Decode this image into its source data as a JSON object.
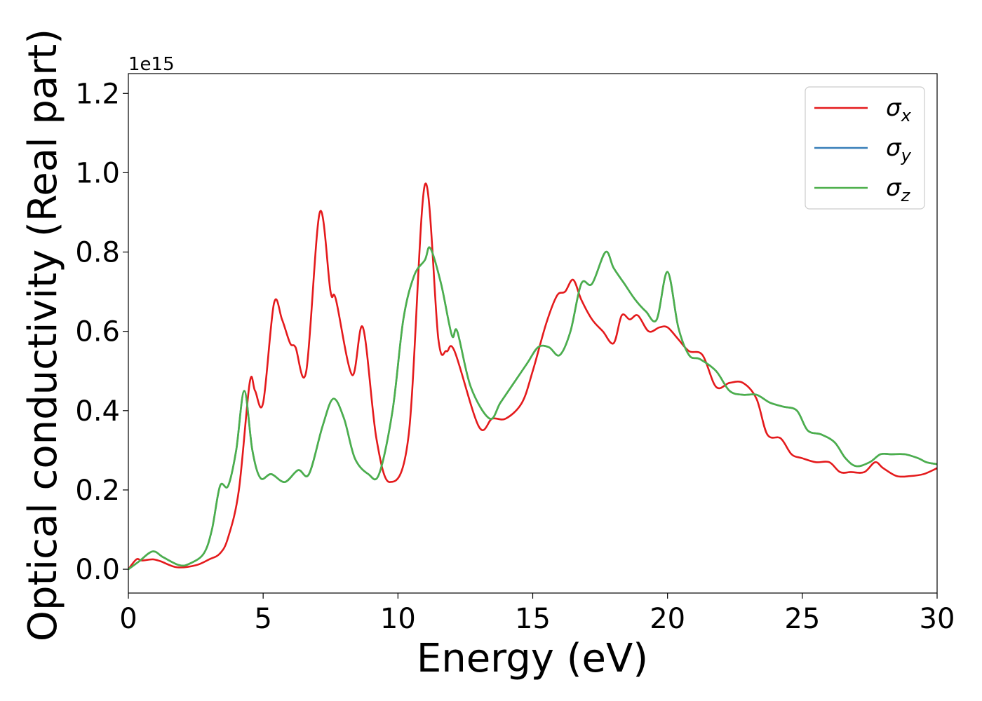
{
  "chart_data": {
    "type": "line",
    "title": "",
    "xlabel": "Energy (eV)",
    "ylabel": "Optical conductivity (Real part)",
    "y_offset_label": "1e15",
    "xlim": [
      0,
      30
    ],
    "ylim": [
      -0.06,
      1.25
    ],
    "x_ticks": [
      0,
      5,
      10,
      15,
      20,
      25,
      30
    ],
    "x_tick_labels": [
      "0",
      "5",
      "10",
      "15",
      "20",
      "25",
      "30"
    ],
    "y_ticks": [
      0.0,
      0.2,
      0.4,
      0.6,
      0.8,
      1.0,
      1.2
    ],
    "y_tick_labels": [
      "0.0",
      "0.2",
      "0.4",
      "0.6",
      "0.8",
      "1.0",
      "1.2"
    ],
    "grid": false,
    "legend_position": "top-right",
    "series": [
      {
        "name": "σx",
        "symbol": "σ",
        "subscript": "x",
        "color": "#e41a1c",
        "x": [
          0,
          0.3,
          0.5,
          0.9,
          1.2,
          1.8,
          2.5,
          3,
          3.4,
          3.7,
          4.1,
          4.5,
          4.7,
          5,
          5.4,
          5.7,
          6,
          6.2,
          6.6,
          7.1,
          7.5,
          7.7,
          8.3,
          8.7,
          9.2,
          9.7,
          10.4,
          11,
          11.5,
          11.8,
          12.1,
          13,
          13.5,
          14,
          14.6,
          15,
          15.5,
          15.9,
          16.2,
          16.5,
          16.8,
          17.2,
          17.6,
          18,
          18.3,
          18.6,
          18.9,
          19.3,
          19.7,
          20,
          20.4,
          20.8,
          21.3,
          21.8,
          22.3,
          22.8,
          23.3,
          23.7,
          24.2,
          24.6,
          25,
          25.5,
          26,
          26.4,
          26.8,
          27.3,
          27.7,
          28,
          28.5,
          29,
          29.5,
          30
        ],
        "values": [
          0,
          0.025,
          0.022,
          0.025,
          0.02,
          0.005,
          0.01,
          0.025,
          0.04,
          0.08,
          0.2,
          0.47,
          0.45,
          0.42,
          0.67,
          0.63,
          0.57,
          0.56,
          0.5,
          0.9,
          0.7,
          0.68,
          0.49,
          0.61,
          0.33,
          0.22,
          0.34,
          0.97,
          0.58,
          0.55,
          0.55,
          0.36,
          0.38,
          0.38,
          0.42,
          0.5,
          0.62,
          0.69,
          0.7,
          0.73,
          0.68,
          0.63,
          0.6,
          0.57,
          0.64,
          0.63,
          0.64,
          0.6,
          0.61,
          0.61,
          0.58,
          0.55,
          0.54,
          0.46,
          0.47,
          0.47,
          0.43,
          0.34,
          0.33,
          0.29,
          0.28,
          0.27,
          0.27,
          0.245,
          0.245,
          0.245,
          0.27,
          0.255,
          0.235,
          0.235,
          0.24,
          0.255
        ]
      },
      {
        "name": "σy",
        "symbol": "σ",
        "subscript": "y",
        "color": "#377eb8",
        "x": [
          0,
          0.4,
          0.9,
          1.3,
          1.9,
          2.3,
          2.8,
          3.1,
          3.4,
          3.7,
          4,
          4.3,
          4.6,
          4.9,
          5.3,
          5.8,
          6.3,
          6.7,
          7.2,
          7.6,
          8,
          8.4,
          8.9,
          9.3,
          9.8,
          10.2,
          10.6,
          11,
          11.2,
          11.6,
          12,
          12.2,
          12.7,
          13.4,
          13.8,
          14.3,
          14.8,
          15.2,
          15.6,
          16,
          16.4,
          16.8,
          17.2,
          17.7,
          18,
          18.4,
          18.8,
          19.2,
          19.6,
          20,
          20.4,
          20.8,
          21.2,
          21.8,
          22.3,
          22.8,
          23.3,
          23.8,
          24.3,
          24.8,
          25.2,
          25.7,
          26.2,
          26.6,
          27,
          27.5,
          27.9,
          28.3,
          28.8,
          29.3,
          29.6,
          30
        ],
        "values": [
          0,
          0.02,
          0.045,
          0.03,
          0.01,
          0.015,
          0.04,
          0.1,
          0.21,
          0.21,
          0.3,
          0.45,
          0.3,
          0.23,
          0.24,
          0.22,
          0.25,
          0.24,
          0.36,
          0.43,
          0.38,
          0.28,
          0.24,
          0.24,
          0.4,
          0.63,
          0.74,
          0.78,
          0.81,
          0.72,
          0.59,
          0.6,
          0.46,
          0.38,
          0.42,
          0.47,
          0.52,
          0.56,
          0.56,
          0.54,
          0.6,
          0.72,
          0.72,
          0.8,
          0.76,
          0.72,
          0.68,
          0.65,
          0.63,
          0.75,
          0.61,
          0.54,
          0.53,
          0.5,
          0.45,
          0.44,
          0.44,
          0.42,
          0.41,
          0.4,
          0.35,
          0.34,
          0.32,
          0.28,
          0.26,
          0.27,
          0.29,
          0.29,
          0.29,
          0.28,
          0.27,
          0.265
        ]
      },
      {
        "name": "σz",
        "symbol": "σ",
        "subscript": "z",
        "color": "#4daf4a",
        "x": [
          0,
          0.4,
          0.9,
          1.3,
          1.9,
          2.3,
          2.8,
          3.1,
          3.4,
          3.7,
          4,
          4.3,
          4.6,
          4.9,
          5.3,
          5.8,
          6.3,
          6.7,
          7.2,
          7.6,
          8,
          8.4,
          8.9,
          9.3,
          9.8,
          10.2,
          10.6,
          11,
          11.2,
          11.6,
          12,
          12.2,
          12.7,
          13.4,
          13.8,
          14.3,
          14.8,
          15.2,
          15.6,
          16,
          16.4,
          16.8,
          17.2,
          17.7,
          18,
          18.4,
          18.8,
          19.2,
          19.6,
          20,
          20.4,
          20.8,
          21.2,
          21.8,
          22.3,
          22.8,
          23.3,
          23.8,
          24.3,
          24.8,
          25.2,
          25.7,
          26.2,
          26.6,
          27,
          27.5,
          27.9,
          28.3,
          28.8,
          29.3,
          29.6,
          30
        ],
        "values": [
          0,
          0.02,
          0.045,
          0.03,
          0.01,
          0.015,
          0.04,
          0.1,
          0.21,
          0.21,
          0.3,
          0.45,
          0.3,
          0.23,
          0.24,
          0.22,
          0.25,
          0.24,
          0.36,
          0.43,
          0.38,
          0.28,
          0.24,
          0.24,
          0.4,
          0.63,
          0.74,
          0.78,
          0.81,
          0.72,
          0.59,
          0.6,
          0.46,
          0.38,
          0.42,
          0.47,
          0.52,
          0.56,
          0.56,
          0.54,
          0.6,
          0.72,
          0.72,
          0.8,
          0.76,
          0.72,
          0.68,
          0.65,
          0.63,
          0.75,
          0.61,
          0.54,
          0.53,
          0.5,
          0.45,
          0.44,
          0.44,
          0.42,
          0.41,
          0.4,
          0.35,
          0.34,
          0.32,
          0.28,
          0.26,
          0.27,
          0.29,
          0.29,
          0.29,
          0.28,
          0.27,
          0.265
        ]
      }
    ]
  }
}
